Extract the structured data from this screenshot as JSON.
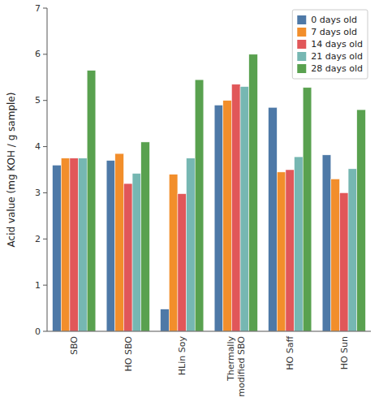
{
  "chart_data": {
    "type": "bar",
    "categories": [
      "SBO",
      "HO SBO",
      "HLin Soy",
      "Thermally\nmodified SBO",
      "HO Saff",
      "HO Sun"
    ],
    "series": [
      {
        "name": "0 days old",
        "values": [
          3.6,
          3.7,
          0.48,
          4.9,
          4.85,
          3.82
        ]
      },
      {
        "name": "7 days old",
        "values": [
          3.75,
          3.85,
          3.4,
          5.0,
          3.45,
          3.3
        ]
      },
      {
        "name": "14 days old",
        "values": [
          3.75,
          3.2,
          2.98,
          5.35,
          3.5,
          3.0
        ]
      },
      {
        "name": "21 days old",
        "values": [
          3.75,
          3.42,
          3.75,
          5.3,
          3.78,
          3.52
        ]
      },
      {
        "name": "28 days old",
        "values": [
          5.65,
          4.1,
          5.45,
          6.0,
          5.28,
          4.8
        ]
      }
    ],
    "ylabel": "Acid value (mg KOH / g sample)",
    "ylim": [
      0,
      7
    ],
    "yticks": [
      0,
      1,
      2,
      3,
      4,
      5,
      6,
      7
    ],
    "grid": false,
    "legend": "upper right"
  }
}
